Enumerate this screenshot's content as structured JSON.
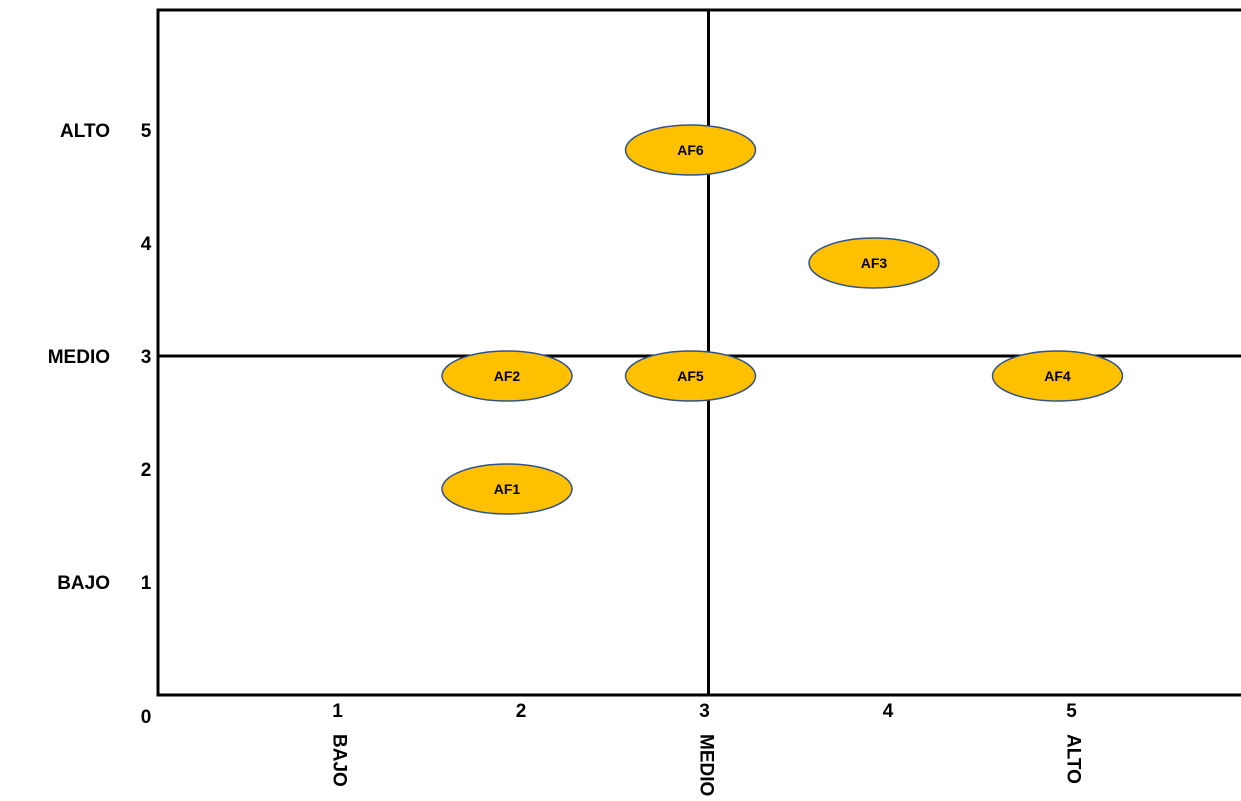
{
  "chart_data": {
    "type": "scatter",
    "title": "",
    "xlabel": "",
    "ylabel": "",
    "xlim": [
      0,
      5.9
    ],
    "ylim": [
      0,
      5.9
    ],
    "grid": false,
    "x_ticks": [
      "0",
      "1",
      "2",
      "3",
      "4",
      "5"
    ],
    "y_ticks": [
      "1",
      "2",
      "3",
      "4",
      "5"
    ],
    "x_categories": [
      {
        "at": 1,
        "label": "BAJO"
      },
      {
        "at": 3,
        "label": "MEDIO"
      },
      {
        "at": 5,
        "label": "ALTO"
      }
    ],
    "y_categories": [
      {
        "at": 1,
        "label": "BAJO"
      },
      {
        "at": 3,
        "label": "MEDIO"
      },
      {
        "at": 5,
        "label": "ALTO"
      }
    ],
    "reference_lines": {
      "x": 3,
      "y": 3
    },
    "marker_color": "#FFC000",
    "marker_edge_color": "#2F528F",
    "points": [
      {
        "label": "AF1",
        "x": 2,
        "y": 2
      },
      {
        "label": "AF2",
        "x": 2,
        "y": 3
      },
      {
        "label": "AF3",
        "x": 4,
        "y": 4
      },
      {
        "label": "AF4",
        "x": 5,
        "y": 3
      },
      {
        "label": "AF5",
        "x": 3,
        "y": 3
      },
      {
        "label": "AF6",
        "x": 3,
        "y": 5
      }
    ]
  }
}
